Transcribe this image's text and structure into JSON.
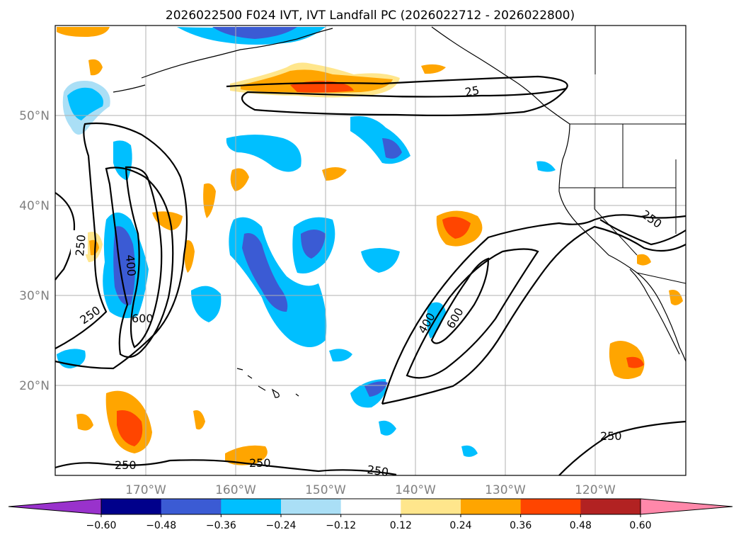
{
  "title": "2026022500 F024 IVT, IVT Landfall PC (2026022712 - 2026022800)",
  "map": {
    "lat_labels": [
      "50°N",
      "40°N",
      "30°N",
      "20°N"
    ],
    "lon_labels": [
      "170°W",
      "160°W",
      "150°W",
      "140°W",
      "130°W",
      "120°W"
    ],
    "contour_labels": {
      "c250_w": "250",
      "c250_w2": "250",
      "c400_w": "400",
      "c600_w": "600",
      "c250_n": "25",
      "c400_m": "400",
      "c600_m": "600",
      "c250_ca": "250",
      "c250_s1": "250",
      "c250_s2": "250",
      "c250_s3": "250",
      "c250_se": "250"
    },
    "colors": {
      "orange": "#ffa500",
      "red_orange": "#ff4500",
      "light_yellow": "#ffe68c",
      "deep_sky": "#00bfff",
      "royal_blue": "#3b5bd4",
      "light_blue": "#aadff6"
    }
  },
  "colorbar": {
    "ticks": [
      "−0.60",
      "−0.48",
      "−0.36",
      "−0.24",
      "−0.12",
      "0.12",
      "0.24",
      "0.36",
      "0.48",
      "0.60"
    ],
    "colors": [
      "#9932cc",
      "#00008b",
      "#3b5bd4",
      "#00bfff",
      "#aadff6",
      "#ffffff",
      "#ffe68c",
      "#ffa500",
      "#ff4500",
      "#b22222",
      "#ff88aa"
    ]
  }
}
